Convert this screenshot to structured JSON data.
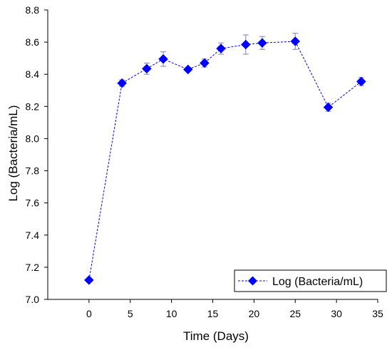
{
  "chart_data": {
    "type": "line",
    "xlabel": "Time (Days)",
    "ylabel": "Log (Bacteria/mL)",
    "xlim": [
      -5,
      35
    ],
    "ylim": [
      7.0,
      8.8
    ],
    "xticks": [
      "0",
      "5",
      "10",
      "15",
      "20",
      "25",
      "30",
      "35"
    ],
    "yticks": [
      "7.0",
      "7.2",
      "7.4",
      "7.6",
      "7.8",
      "8.0",
      "8.2",
      "8.4",
      "8.6",
      "8.8"
    ],
    "grid": false,
    "legend_position": "bottom-right",
    "series": [
      {
        "name": "Log (Bacteria/mL)",
        "color": "#0000ff",
        "marker": "diamond",
        "line_style": "dashed",
        "x": [
          0,
          4,
          7,
          9,
          12,
          14,
          16,
          19,
          21,
          25,
          29,
          33
        ],
        "y": [
          7.12,
          8.345,
          8.435,
          8.495,
          8.43,
          8.47,
          8.56,
          8.585,
          8.595,
          8.605,
          8.195,
          8.355
        ],
        "error": [
          0,
          0.02,
          0.035,
          0.045,
          0.01,
          0.025,
          0.035,
          0.06,
          0.04,
          0.05,
          0.025,
          0.025
        ]
      }
    ]
  }
}
